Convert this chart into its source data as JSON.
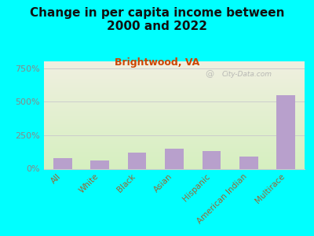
{
  "title": "Change in per capita income between\n2000 and 2022",
  "subtitle": "Brightwood, VA",
  "categories": [
    "All",
    "White",
    "Black",
    "Asian",
    "Hispanic",
    "American Indian",
    "Multirace"
  ],
  "values": [
    80,
    60,
    120,
    150,
    130,
    90,
    550
  ],
  "bar_color": "#b8a0cc",
  "background_outer": "#00ffff",
  "background_inner_top": "#d6efc0",
  "background_inner_bottom": "#f0f0e0",
  "title_color": "#111111",
  "subtitle_color": "#cc4400",
  "axis_label_color": "#888888",
  "tick_label_color": "#996633",
  "ylabel_ticks": [
    0,
    250,
    500,
    750
  ],
  "ylabel_tick_labels": [
    "0%",
    "250%",
    "500%",
    "750%"
  ],
  "ylim": [
    0,
    800
  ],
  "watermark": "City-Data.com",
  "title_fontsize": 11,
  "subtitle_fontsize": 9,
  "tick_fontsize": 7.5,
  "ytick_fontsize": 8
}
